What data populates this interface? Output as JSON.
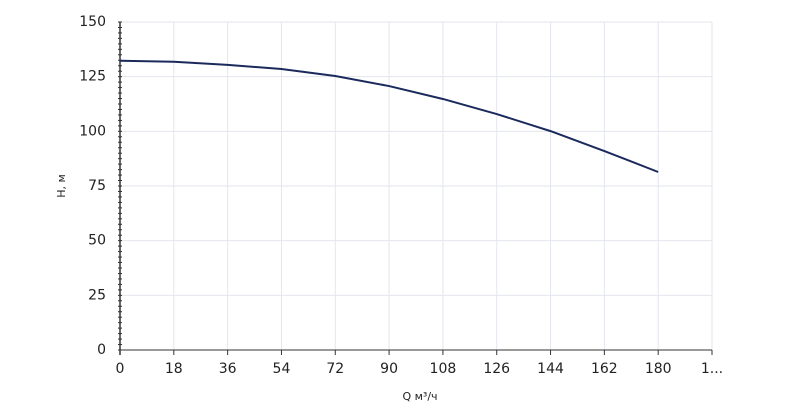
{
  "chart_data": {
    "type": "line",
    "x_label": "Q м³/ч",
    "y_label": "H, м",
    "x": [
      0,
      18,
      36,
      54,
      72,
      90,
      108,
      126,
      144,
      162,
      180
    ],
    "series": [
      {
        "name": "H",
        "color": "#1b2a5c",
        "values": [
          132.3,
          131.8,
          130.4,
          128.5,
          125.3,
          120.7,
          114.8,
          107.9,
          100.1,
          91,
          81.4
        ]
      }
    ],
    "xlim": [
      0,
      198
    ],
    "ylim": [
      0,
      150
    ],
    "xticks": [
      0,
      18,
      36,
      54,
      72,
      90,
      108,
      126,
      144,
      162,
      180,
      {
        "value": 198,
        "label": "1..."
      }
    ],
    "yticks": [
      0,
      25,
      50,
      75,
      100,
      125,
      150
    ],
    "grid": true
  }
}
